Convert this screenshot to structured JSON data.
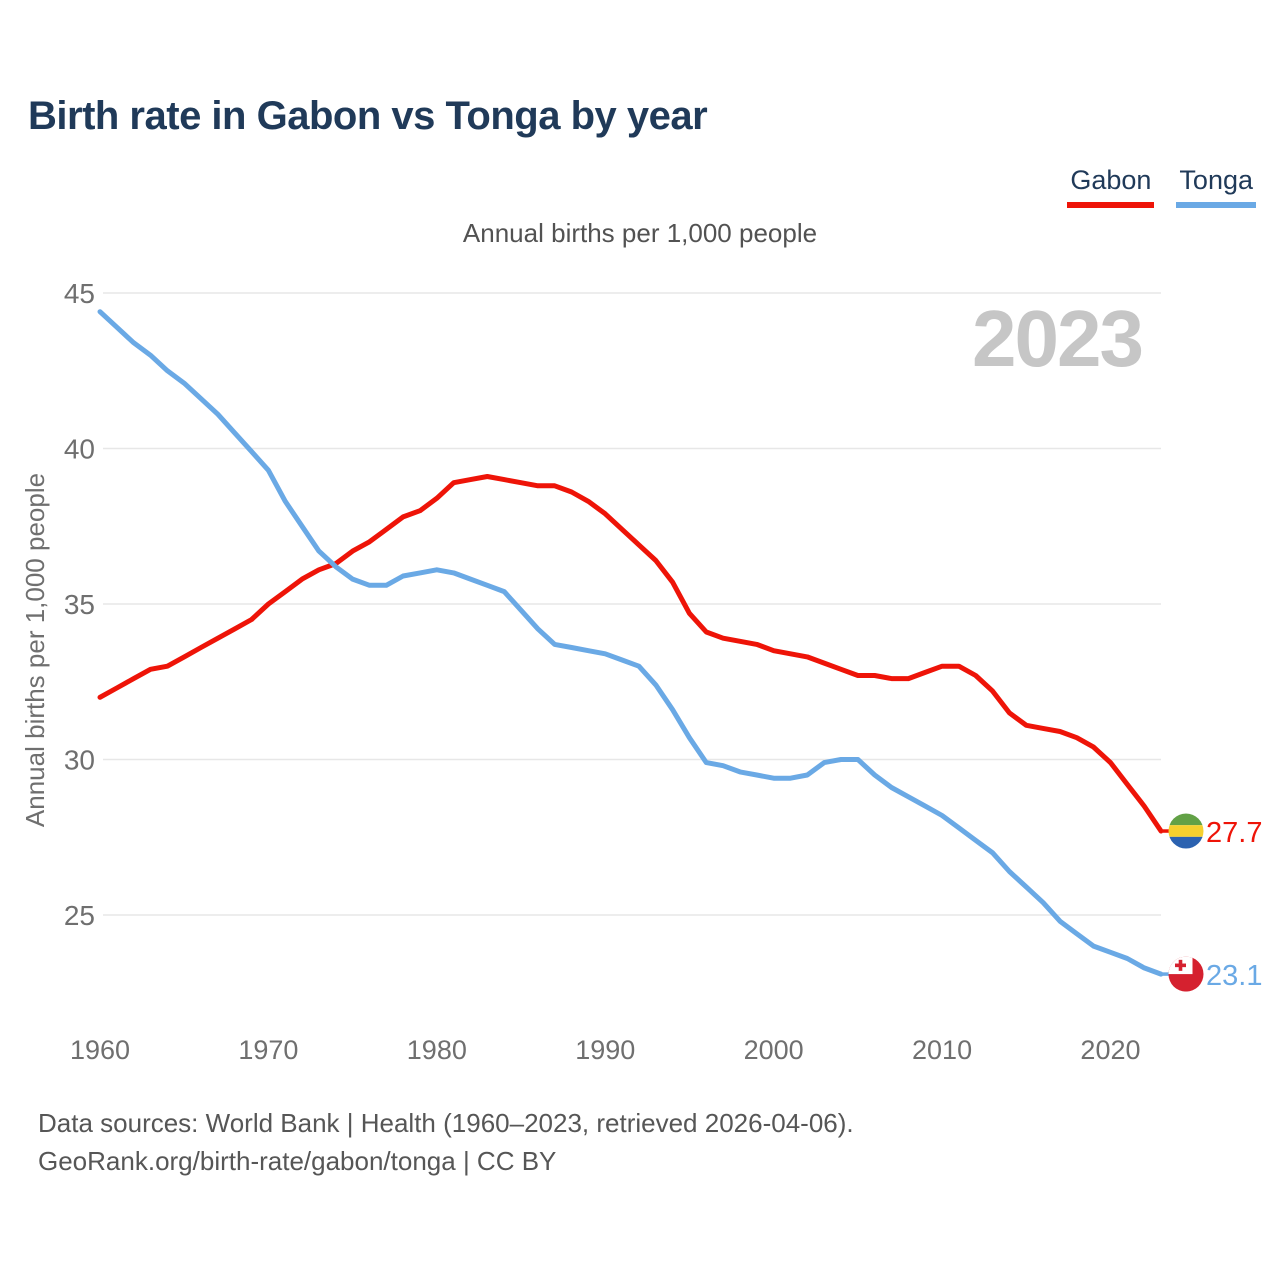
{
  "header": {
    "title": "Birth rate in Gabon vs Tonga by year",
    "subtitle": "Annual births per 1,000 people"
  },
  "legend": [
    {
      "label": "Gabon",
      "color": "#ee1408"
    },
    {
      "label": "Tonga",
      "color": "#6aa9e5"
    }
  ],
  "watermark": {
    "text": "2023"
  },
  "footer": {
    "line1": "Data sources: World Bank | Health (1960–2023, retrieved 2026-04-06).",
    "line2": "GeoRank.org/birth-rate/gabon/tonga | CC BY"
  },
  "colors": {
    "title_navy": "#203a59",
    "tick_gray": "#6f6f6f",
    "gridline": "#e7e7e7",
    "watermark_gray": "#c6c6c6",
    "gabon_red": "#ee1408",
    "tonga_blue": "#6aa9e5",
    "gabon_flag_green": "#62a146",
    "gabon_flag_yellow": "#f5d02e",
    "gabon_flag_blue": "#2b62b0",
    "tonga_flag_red": "#d5212f"
  },
  "chart_data": {
    "type": "line",
    "title": "Birth rate in Gabon vs Tonga by year",
    "subtitle": "Annual births per 1,000 people",
    "xlabel": "",
    "ylabel": "Annual births per 1,000 people",
    "xlim": [
      1960,
      2023
    ],
    "ylim": [
      25,
      45
    ],
    "yticks": [
      25,
      30,
      35,
      40,
      45
    ],
    "xticks": [
      1960,
      1970,
      1980,
      1990,
      2000,
      2010,
      2020
    ],
    "grid": "horizontal",
    "legend_position": "top-right",
    "x": [
      1960,
      1961,
      1962,
      1963,
      1964,
      1965,
      1966,
      1967,
      1968,
      1969,
      1970,
      1971,
      1972,
      1973,
      1974,
      1975,
      1976,
      1977,
      1978,
      1979,
      1980,
      1981,
      1982,
      1983,
      1984,
      1985,
      1986,
      1987,
      1988,
      1989,
      1990,
      1991,
      1992,
      1993,
      1994,
      1995,
      1996,
      1997,
      1998,
      1999,
      2000,
      2001,
      2002,
      2003,
      2004,
      2005,
      2006,
      2007,
      2008,
      2009,
      2010,
      2011,
      2012,
      2013,
      2014,
      2015,
      2016,
      2017,
      2018,
      2019,
      2020,
      2021,
      2022,
      2023
    ],
    "series": [
      {
        "name": "Gabon",
        "color": "#ee1408",
        "end_label": "27.7",
        "flag_icon": "gabon-flag",
        "values": [
          32.0,
          32.3,
          32.6,
          32.9,
          33.0,
          33.3,
          33.6,
          33.9,
          34.2,
          34.5,
          35.0,
          35.4,
          35.8,
          36.1,
          36.3,
          36.7,
          37.0,
          37.4,
          37.8,
          38.0,
          38.4,
          38.9,
          39.0,
          39.1,
          39.0,
          38.9,
          38.8,
          38.8,
          38.6,
          38.3,
          37.9,
          37.4,
          36.9,
          36.4,
          35.7,
          34.7,
          34.1,
          33.9,
          33.8,
          33.7,
          33.5,
          33.4,
          33.3,
          33.1,
          32.9,
          32.7,
          32.7,
          32.6,
          32.6,
          32.8,
          33.0,
          33.0,
          32.7,
          32.2,
          31.5,
          31.1,
          31.0,
          30.9,
          30.7,
          30.4,
          29.9,
          29.2,
          28.5,
          27.7
        ]
      },
      {
        "name": "Tonga",
        "color": "#6aa9e5",
        "end_label": "23.1",
        "flag_icon": "tonga-flag",
        "values": [
          44.4,
          43.9,
          43.4,
          43.0,
          42.5,
          42.1,
          41.6,
          41.1,
          40.5,
          39.9,
          39.3,
          38.3,
          37.5,
          36.7,
          36.2,
          35.8,
          35.6,
          35.6,
          35.9,
          36.0,
          36.1,
          36.0,
          35.8,
          35.6,
          35.4,
          34.8,
          34.2,
          33.7,
          33.6,
          33.5,
          33.4,
          33.2,
          33.0,
          32.4,
          31.6,
          30.7,
          29.9,
          29.8,
          29.6,
          29.5,
          29.4,
          29.4,
          29.5,
          29.9,
          30.0,
          30.0,
          29.5,
          29.1,
          28.8,
          28.5,
          28.2,
          27.8,
          27.4,
          27.0,
          26.4,
          25.9,
          25.4,
          24.8,
          24.4,
          24.0,
          23.8,
          23.6,
          23.3,
          23.1
        ]
      }
    ]
  }
}
